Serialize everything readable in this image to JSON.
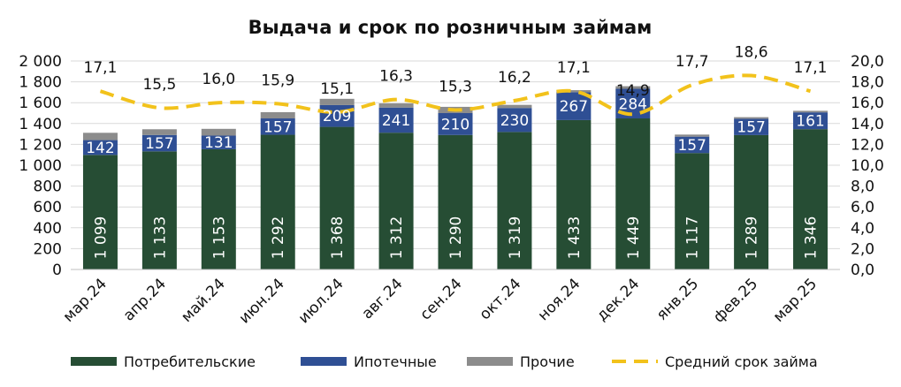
{
  "chart_data": {
    "type": "bar",
    "title": "Выдача и срок по розничным займам",
    "categories": [
      "мар.24",
      "апр.24",
      "май.24",
      "июн.24",
      "июл.24",
      "авг.24",
      "сен.24",
      "окт.24",
      "ноя.24",
      "дек.24",
      "янв.25",
      "фев.25",
      "мар.25"
    ],
    "series": [
      {
        "name": "Потребительские",
        "kind": "stacked-bar",
        "color": "#264d34",
        "values": [
          1099,
          1133,
          1153,
          1292,
          1368,
          1312,
          1290,
          1319,
          1433,
          1449,
          1117,
          1289,
          1346
        ],
        "labels": [
          "1 099",
          "1 133",
          "1 153",
          "1 292",
          "1 368",
          "1 312",
          "1 290",
          "1 319",
          "1 433",
          "1 449",
          "1 117",
          "1 289",
          "1 346"
        ]
      },
      {
        "name": "Ипотечные",
        "kind": "stacked-bar",
        "color": "#2f4f94",
        "values": [
          142,
          157,
          131,
          157,
          209,
          241,
          210,
          230,
          267,
          284,
          157,
          157,
          161
        ],
        "labels": [
          "142",
          "157",
          "131",
          "157",
          "209",
          "241",
          "210",
          "230",
          "267",
          "284",
          "157",
          "157",
          "161"
        ]
      },
      {
        "name": "Прочие",
        "kind": "stacked-bar",
        "color": "#8c8c8c",
        "values": [
          70,
          55,
          65,
          60,
          60,
          40,
          60,
          30,
          20,
          25,
          20,
          15,
          15
        ]
      },
      {
        "name": "Средний срок займа",
        "kind": "line",
        "axis": "right",
        "color": "#f2c21b",
        "dashed": true,
        "values": [
          17.1,
          15.5,
          16.0,
          15.9,
          15.1,
          16.3,
          15.3,
          16.2,
          17.1,
          14.9,
          17.7,
          18.6,
          17.1
        ],
        "labels": [
          "17,1",
          "15,5",
          "16,0",
          "15,9",
          "15,1",
          "16,3",
          "15,3",
          "16,2",
          "17,1",
          "14,9",
          "17,7",
          "18,6",
          "17,1"
        ]
      }
    ],
    "y_left": {
      "min": 0,
      "max": 2000,
      "ticks": [
        "0",
        "200",
        "400",
        "600",
        "800",
        "1 000",
        "1 200",
        "1 400",
        "1 600",
        "1 800",
        "2 000"
      ]
    },
    "y_right": {
      "min": 0,
      "max": 20,
      "ticks": [
        "0,0",
        "2,0",
        "4,0",
        "6,0",
        "8,0",
        "10,0",
        "12,0",
        "14,0",
        "16,0",
        "18,0",
        "20,0"
      ]
    },
    "grid": true,
    "legend": "bottom"
  }
}
